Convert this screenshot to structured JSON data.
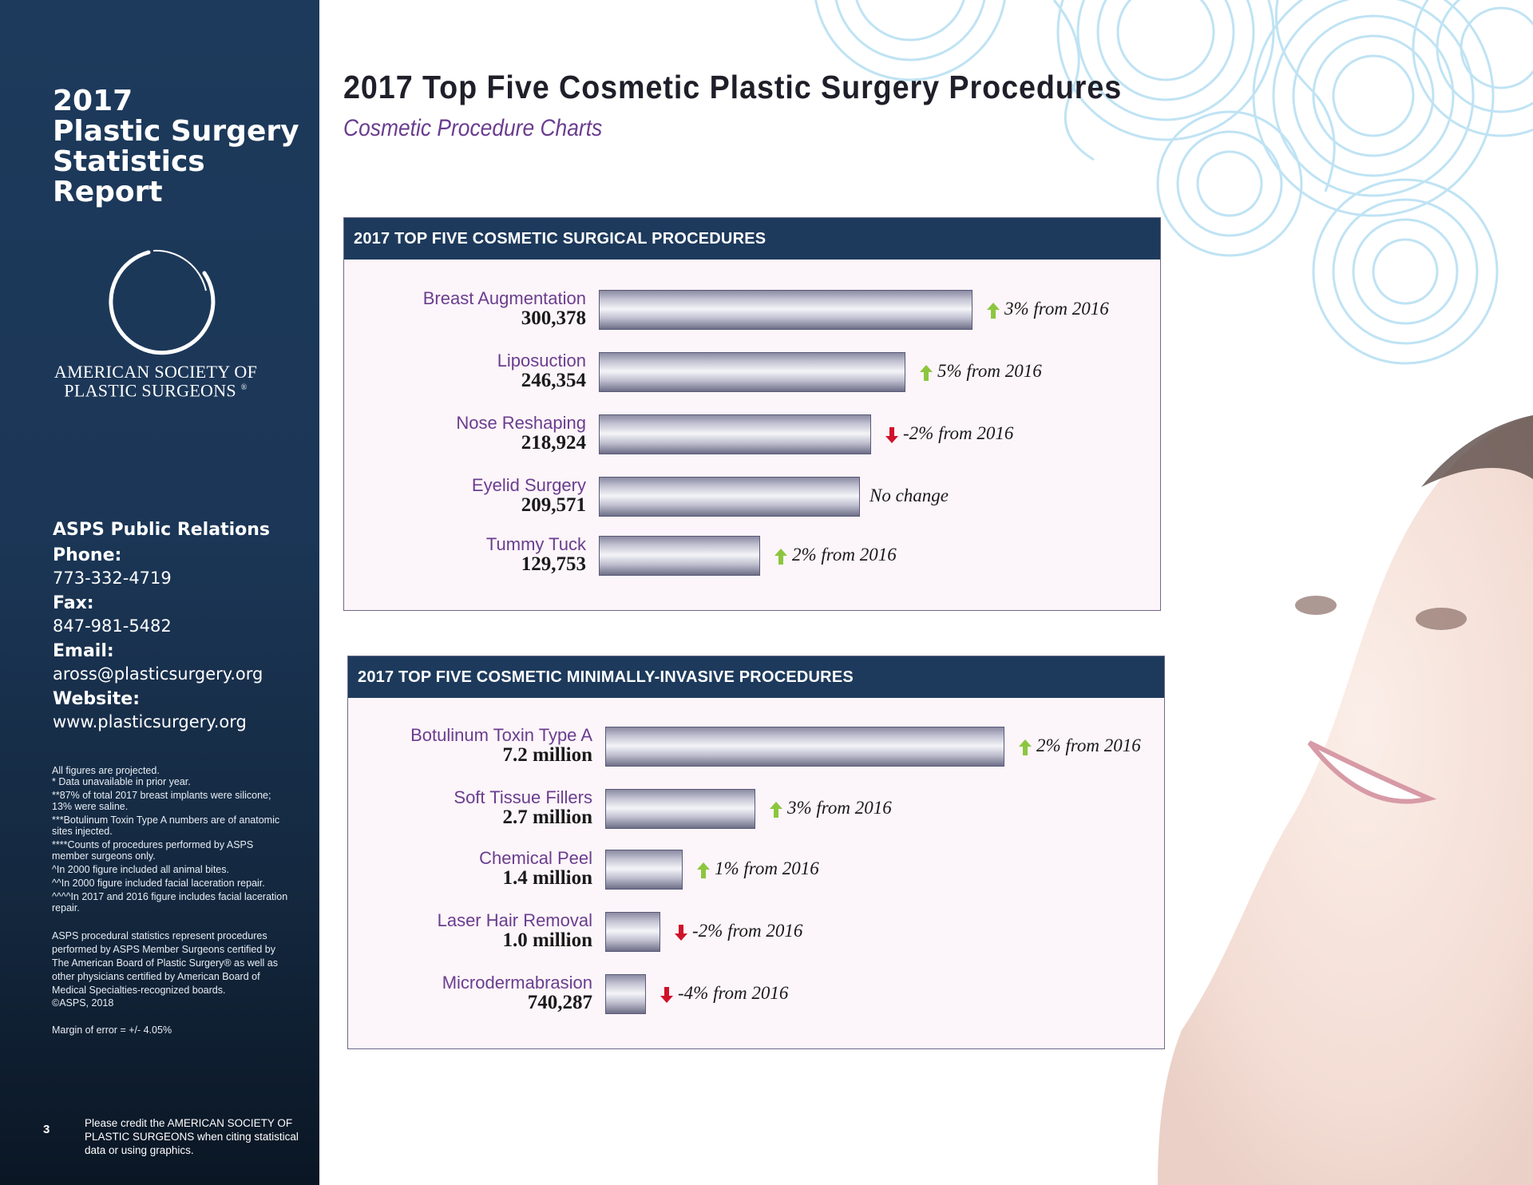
{
  "sidebar": {
    "title_lines": [
      "2017",
      "Plastic Surgery",
      "Statistics",
      "Report"
    ],
    "org_name_line1": "AMERICAN SOCIETY OF",
    "org_name_line2": "PLASTIC SURGEONS",
    "org_mark": "®",
    "contact": {
      "heading": "ASPS Public Relations",
      "phone_label": "Phone:",
      "phone": "773-332-4719",
      "fax_label": "Fax:",
      "fax": "847-981-5482",
      "email_label": "Email:",
      "email": "aross@plasticsurgery.org",
      "website_label": "Website:",
      "website": "www.plasticsurgery.org"
    },
    "notes": [
      "All figures are projected.",
      "* Data unavailable in prior year.",
      "**87% of total 2017 breast implants were silicone; 13% were saline.",
      "***Botulinum Toxin Type A numbers are of anatomic sites injected.",
      "****Counts of procedures performed by ASPS member surgeons only.",
      "^In 2000 figure included all animal bites.",
      "^^In 2000 figure included facial laceration repair.",
      "^^^^In 2017 and 2016 figure includes facial laceration repair."
    ],
    "statement": "ASPS procedural statistics represent procedures performed by ASPS Member Surgeons certified by The American Board of Plastic Surgery® as well as other physicians certified by American Board of Medical Specialties-recognized boards.",
    "copyright": "©ASPS, 2018",
    "margin_of_error": "Margin of error = +/- 4.05%",
    "page_number": "3",
    "credit": "Please credit the AMERICAN SOCIETY OF PLASTIC SURGEONS when citing statistical data or using graphics."
  },
  "header": {
    "title": "2017 Top Five Cosmetic Plastic Surgery Procedures",
    "subtitle": "Cosmetic Procedure Charts"
  },
  "colors": {
    "navy": "#1d3a5c",
    "purple": "#6a3d8f",
    "up_green": "#8cc63f",
    "down_red": "#d0112b",
    "panel_bg": "#fcf5f9"
  },
  "chart_data": [
    {
      "type": "bar",
      "orientation": "horizontal",
      "title": "2017 TOP FIVE COSMETIC SURGICAL PROCEDURES",
      "categories": [
        "Breast Augmentation",
        "Liposuction",
        "Nose Reshaping",
        "Eyelid Surgery",
        "Tummy Tuck"
      ],
      "values": [
        300378,
        246354,
        218924,
        209571,
        129753
      ],
      "value_labels": [
        "300,378",
        "246,354",
        "218,924",
        "209,571",
        "129,753"
      ],
      "changes": [
        {
          "direction": "up",
          "text": "3% from 2016"
        },
        {
          "direction": "up",
          "text": "5% from 2016"
        },
        {
          "direction": "down",
          "text": "-2% from 2016"
        },
        {
          "direction": "none",
          "text": "No change"
        },
        {
          "direction": "up",
          "text": "2% from 2016"
        }
      ]
    },
    {
      "type": "bar",
      "orientation": "horizontal",
      "title": "2017 TOP FIVE COSMETIC MINIMALLY-INVASIVE PROCEDURES",
      "categories": [
        "Botulinum Toxin Type A",
        "Soft Tissue Fillers",
        "Chemical Peel",
        "Laser Hair Removal",
        "Microdermabrasion"
      ],
      "values": [
        7200000,
        2700000,
        1400000,
        1000000,
        740287
      ],
      "value_labels": [
        "7.2 million",
        "2.7 million",
        "1.4 million",
        "1.0 million",
        "740,287"
      ],
      "changes": [
        {
          "direction": "up",
          "text": "2% from 2016"
        },
        {
          "direction": "up",
          "text": "3% from 2016"
        },
        {
          "direction": "up",
          "text": "1% from 2016"
        },
        {
          "direction": "down",
          "text": "-2% from 2016"
        },
        {
          "direction": "down",
          "text": "-4% from 2016"
        }
      ]
    }
  ]
}
